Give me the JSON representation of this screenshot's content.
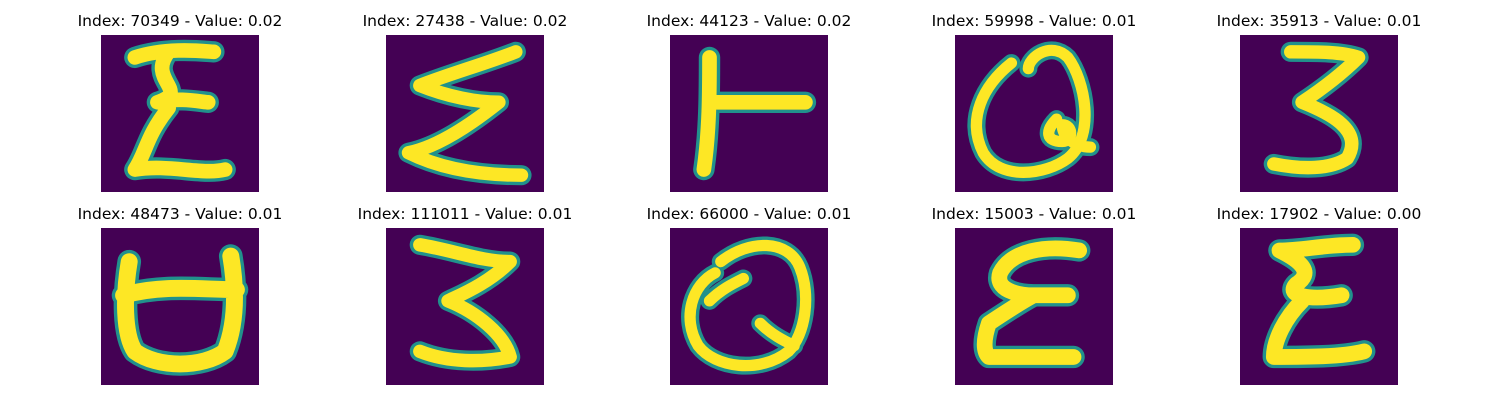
{
  "background_color": "#440154",
  "stroke_color": "#fde725",
  "edge_color": "#21918c",
  "panels": [
    {
      "index": "70349",
      "value": "0.02",
      "glyph": "sigma-like",
      "title": "Index: 70349 - Value: 0.02"
    },
    {
      "index": "27438",
      "value": "0.02",
      "glyph": "sigma-like",
      "title": "Index: 27438 - Value: 0.02"
    },
    {
      "index": "44123",
      "value": "0.02",
      "glyph": "rotated-T",
      "title": "Index: 44123 - Value: 0.02"
    },
    {
      "index": "59998",
      "value": "0.01",
      "glyph": "Q-like",
      "title": "Index: 59998 - Value: 0.01"
    },
    {
      "index": "35913",
      "value": "0.01",
      "glyph": "three",
      "title": "Index: 35913 - Value: 0.01"
    },
    {
      "index": "48473",
      "value": "0.01",
      "glyph": "cup-a",
      "title": "Index: 48473 - Value: 0.01"
    },
    {
      "index": "111011",
      "value": "0.01",
      "glyph": "three",
      "title": "Index: 111011 - Value: 0.01"
    },
    {
      "index": "66000",
      "value": "0.01",
      "glyph": "Q-like",
      "title": "Index: 66000 - Value: 0.01"
    },
    {
      "index": "15003",
      "value": "0.01",
      "glyph": "epsilon",
      "title": "Index: 15003 - Value: 0.01"
    },
    {
      "index": "17902",
      "value": "0.00",
      "glyph": "epsilon",
      "title": "Index: 17902 - Value: 0.00"
    }
  ]
}
